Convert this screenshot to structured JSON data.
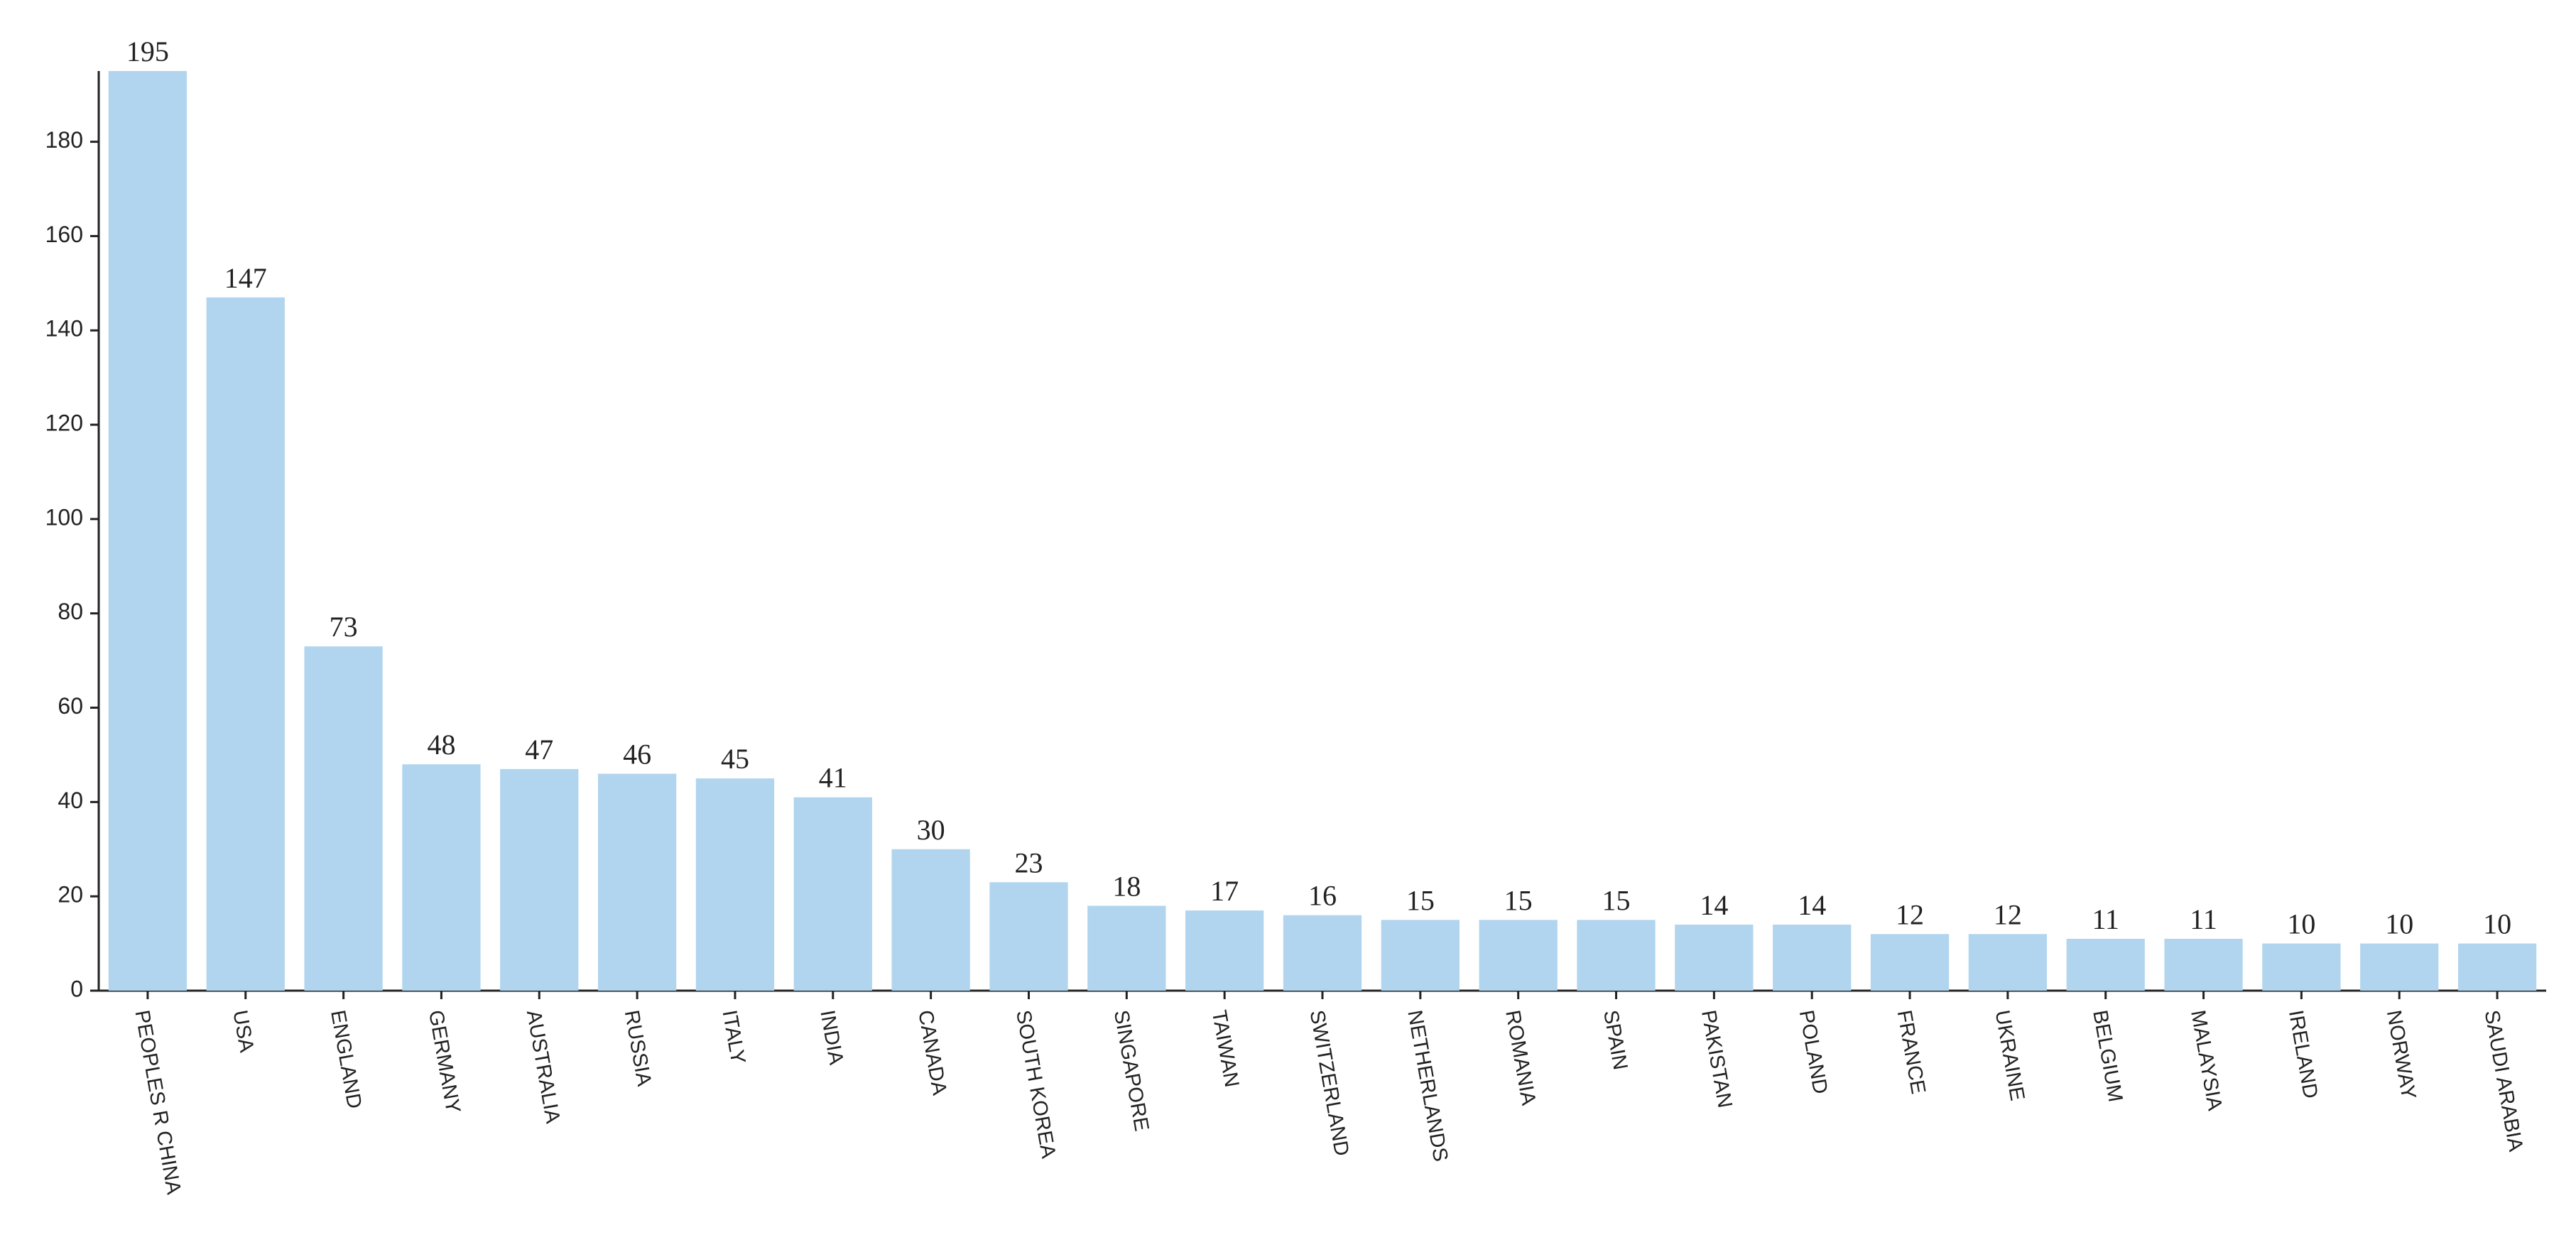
{
  "chart_data": {
    "type": "bar",
    "categories": [
      "PEOPLES R CHINA",
      "USA",
      "ENGLAND",
      "GERMANY",
      "AUSTRALIA",
      "RUSSIA",
      "ITALY",
      "INDIA",
      "CANADA",
      "SOUTH KOREA",
      "SINGAPORE",
      "TAIWAN",
      "SWITZERLAND",
      "NETHERLANDS",
      "ROMANIA",
      "SPAIN",
      "PAKISTAN",
      "POLAND",
      "FRANCE",
      "UKRAINE",
      "BELGIUM",
      "MALAYSIA",
      "IRELAND",
      "NORWAY",
      "SAUDI ARABIA"
    ],
    "values": [
      195,
      147,
      73,
      48,
      47,
      46,
      45,
      41,
      30,
      23,
      18,
      17,
      16,
      15,
      15,
      15,
      14,
      14,
      12,
      12,
      11,
      11,
      10,
      10,
      10
    ],
    "color": "#b1d5ee",
    "ylim": [
      0,
      195
    ],
    "yticks": [
      0,
      20,
      40,
      60,
      80,
      100,
      120,
      140,
      160,
      180
    ],
    "grid": false
  }
}
